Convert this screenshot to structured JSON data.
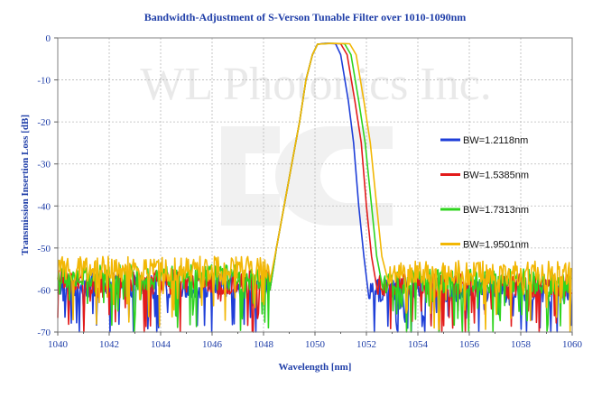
{
  "chart_data": {
    "type": "line",
    "title": "Bandwidth-Adjustment of S-Verson Tunable Filter over 1010-1090nm",
    "xlabel": "Wavelength [nm]",
    "ylabel": "Transmission Insertion Loss [dB]",
    "xlim": [
      1040,
      1060
    ],
    "ylim": [
      -70,
      0
    ],
    "xticks": [
      1040,
      1042,
      1044,
      1046,
      1048,
      1050,
      1052,
      1054,
      1056,
      1058,
      1060
    ],
    "yticks": [
      0,
      -10,
      -20,
      -30,
      -40,
      -50,
      -60,
      -70
    ],
    "xtick_labels": [
      "1040",
      "1042",
      "1044",
      "1046",
      "1048",
      "1050",
      "1052",
      "1054",
      "1056",
      "1058",
      "1060"
    ],
    "ytick_labels": [
      "0",
      "-10",
      "-20",
      "-30",
      "-40",
      "-50",
      "-60",
      "-70"
    ],
    "grid": true,
    "legend_position": "right",
    "watermark": "WL Photonics Inc.",
    "series": [
      {
        "name": "BW=1.2118nm",
        "color": "#1f3fd8",
        "bandwidth_nm": 1.2118,
        "left_edge_points": [
          [
            1048.25,
            -60
          ],
          [
            1048.5,
            -50
          ],
          [
            1048.8,
            -40
          ],
          [
            1049.1,
            -30
          ],
          [
            1049.4,
            -20
          ],
          [
            1049.65,
            -10
          ],
          [
            1049.9,
            -4
          ],
          [
            1050.1,
            -1.5
          ]
        ],
        "top_points": [
          [
            1050.1,
            -1.5
          ],
          [
            1050.4,
            -1.3
          ],
          [
            1050.8,
            -1.4
          ]
        ],
        "right_edge_points": [
          [
            1050.8,
            -1.4
          ],
          [
            1051.0,
            -4
          ],
          [
            1051.3,
            -15
          ],
          [
            1051.5,
            -25
          ],
          [
            1051.7,
            -40
          ],
          [
            1051.9,
            -52
          ],
          [
            1052.1,
            -62
          ]
        ],
        "noise_floor_db": -62
      },
      {
        "name": "BW=1.5385nm",
        "color": "#e21b1b",
        "bandwidth_nm": 1.5385,
        "left_edge_points": [
          [
            1048.25,
            -60
          ],
          [
            1048.5,
            -50
          ],
          [
            1048.8,
            -40
          ],
          [
            1049.1,
            -30
          ],
          [
            1049.4,
            -20
          ],
          [
            1049.65,
            -10
          ],
          [
            1049.9,
            -4
          ],
          [
            1050.1,
            -1.5
          ]
        ],
        "top_points": [
          [
            1050.1,
            -1.5
          ],
          [
            1050.5,
            -1.3
          ],
          [
            1051.0,
            -1.4
          ]
        ],
        "right_edge_points": [
          [
            1051.0,
            -1.4
          ],
          [
            1051.25,
            -4
          ],
          [
            1051.55,
            -15
          ],
          [
            1051.8,
            -25
          ],
          [
            1052.0,
            -40
          ],
          [
            1052.2,
            -52
          ],
          [
            1052.45,
            -61
          ]
        ],
        "noise_floor_db": -61
      },
      {
        "name": "BW=1.7313nm",
        "color": "#2fd41f",
        "bandwidth_nm": 1.7313,
        "left_edge_points": [
          [
            1048.25,
            -60
          ],
          [
            1048.5,
            -50
          ],
          [
            1048.8,
            -40
          ],
          [
            1049.1,
            -30
          ],
          [
            1049.4,
            -20
          ],
          [
            1049.65,
            -10
          ],
          [
            1049.9,
            -4
          ],
          [
            1050.1,
            -1.5
          ]
        ],
        "top_points": [
          [
            1050.1,
            -1.5
          ],
          [
            1050.6,
            -1.3
          ],
          [
            1051.15,
            -1.4
          ]
        ],
        "right_edge_points": [
          [
            1051.15,
            -1.4
          ],
          [
            1051.4,
            -4
          ],
          [
            1051.7,
            -15
          ],
          [
            1051.95,
            -25
          ],
          [
            1052.2,
            -40
          ],
          [
            1052.4,
            -52
          ],
          [
            1052.65,
            -60
          ]
        ],
        "noise_floor_db": -60
      },
      {
        "name": "BW=1.9501nm",
        "color": "#f2b705",
        "bandwidth_nm": 1.9501,
        "left_edge_points": [
          [
            1048.25,
            -58
          ],
          [
            1048.5,
            -50
          ],
          [
            1048.8,
            -40
          ],
          [
            1049.1,
            -30
          ],
          [
            1049.4,
            -20
          ],
          [
            1049.65,
            -10
          ],
          [
            1049.9,
            -4
          ],
          [
            1050.1,
            -1.5
          ]
        ],
        "top_points": [
          [
            1050.1,
            -1.5
          ],
          [
            1050.7,
            -1.3
          ],
          [
            1051.35,
            -1.4
          ]
        ],
        "right_edge_points": [
          [
            1051.35,
            -1.4
          ],
          [
            1051.6,
            -4
          ],
          [
            1051.9,
            -15
          ],
          [
            1052.15,
            -25
          ],
          [
            1052.4,
            -40
          ],
          [
            1052.6,
            -52
          ],
          [
            1052.85,
            -58
          ]
        ],
        "noise_floor_db": -58
      }
    ]
  }
}
